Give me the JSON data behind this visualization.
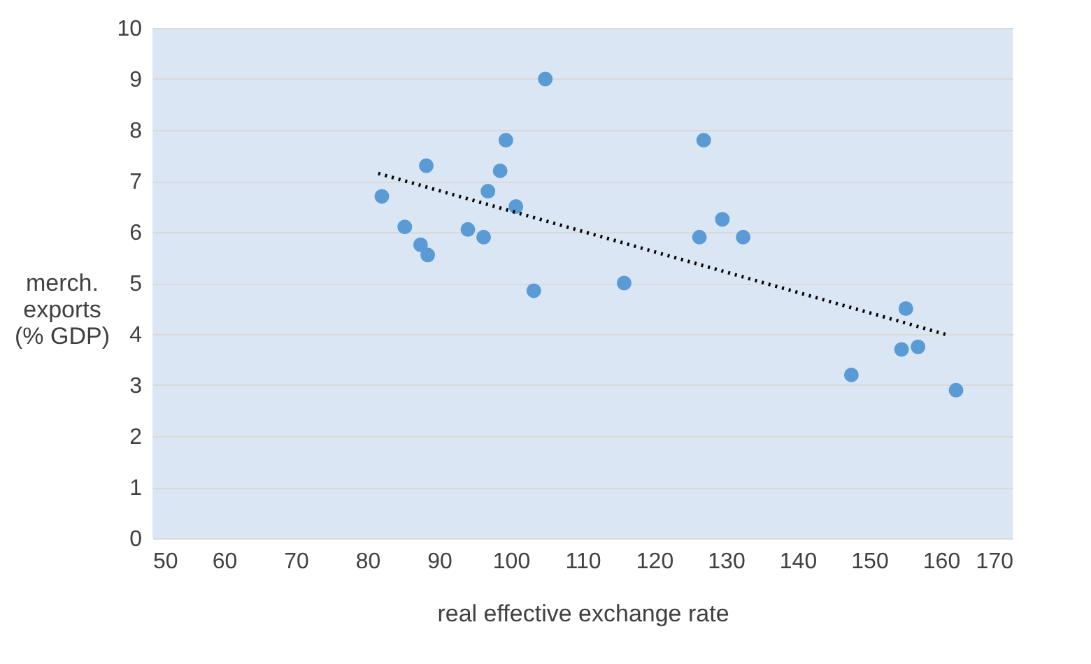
{
  "chart_data": {
    "type": "scatter",
    "xlabel": "real effective exchange rate",
    "ylabel": "merch.\nexports\n(% GDP)",
    "xlim": [
      50,
      170
    ],
    "xticks": [
      50,
      60,
      70,
      80,
      90,
      100,
      110,
      120,
      130,
      140,
      150,
      160,
      170
    ],
    "ylim": [
      0,
      10
    ],
    "yticks": [
      0,
      1,
      2,
      3,
      4,
      5,
      6,
      7,
      8,
      9,
      10
    ],
    "grid": "y",
    "marker": "circle",
    "series": [
      {
        "color": "#5b9bd5",
        "x": [
          82,
          85.2,
          88.2,
          87.4,
          88.4,
          94,
          96.2,
          96.8,
          98.5,
          99.3,
          100.7,
          103.2,
          104.8,
          115.8,
          126.3,
          126.9,
          129.5,
          132.4,
          147.5,
          154.5,
          155.1,
          156.8,
          162.1
        ],
        "values": [
          6.7,
          6.1,
          7.3,
          5.75,
          5.55,
          6.05,
          5.9,
          6.8,
          7.2,
          7.8,
          6.5,
          4.85,
          9,
          5,
          5.9,
          7.8,
          6.25,
          5.9,
          3.2,
          3.7,
          4.5,
          3.75,
          2.9
        ]
      },
      {
        "type": "line",
        "color": "#000000",
        "line_style": "dotted",
        "marker": "none",
        "x": [
          81.5,
          161
        ],
        "values": [
          7.15,
          3.98
        ]
      }
    ]
  }
}
